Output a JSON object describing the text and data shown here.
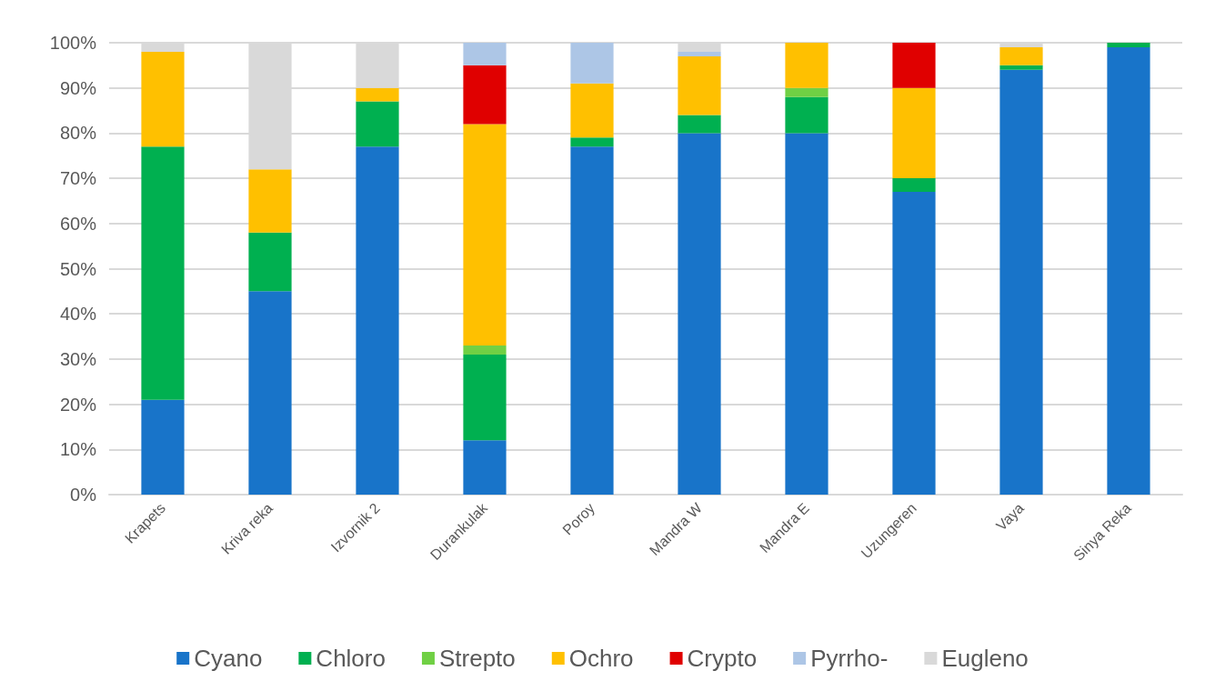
{
  "chart_data": {
    "type": "bar",
    "stacked": true,
    "categories": [
      "Krapets",
      "Kriva reka",
      "Izvornik 2",
      "Durankulak",
      "Poroy",
      "Mandra W",
      "Mandra E",
      "Uzungeren",
      "Vaya",
      "Sinya Reka"
    ],
    "series": [
      {
        "name": "Cyano",
        "color": "#1874c9",
        "values": [
          21,
          45,
          77,
          12,
          77,
          80,
          80,
          67,
          94,
          99
        ]
      },
      {
        "name": "Chloro",
        "color": "#00b050",
        "values": [
          56,
          13,
          10,
          19,
          2,
          4,
          8,
          3,
          1,
          1
        ]
      },
      {
        "name": "Strepto",
        "color": "#70d044",
        "values": [
          0,
          0,
          0,
          2,
          0,
          0,
          2,
          0,
          0,
          0
        ]
      },
      {
        "name": "Ochro",
        "color": "#ffc000",
        "values": [
          21,
          14,
          3,
          49,
          12,
          13,
          10,
          20,
          4,
          0
        ]
      },
      {
        "name": "Crypto",
        "color": "#e00000",
        "values": [
          0,
          0,
          0,
          13,
          0,
          0,
          0,
          10,
          0,
          0
        ]
      },
      {
        "name": "Pyrrho-",
        "color": "#adc6e6",
        "values": [
          0,
          0,
          0,
          5,
          9,
          1,
          0,
          0,
          0,
          0
        ]
      },
      {
        "name": "Eugleno",
        "color": "#d9d9d9",
        "values": [
          2,
          28,
          10,
          0,
          0,
          2,
          0,
          0,
          1,
          0
        ]
      }
    ],
    "ylim": [
      0,
      100
    ],
    "yticks": [
      {
        "value": 0,
        "label": "0%"
      },
      {
        "value": 10,
        "label": "10%"
      },
      {
        "value": 20,
        "label": "20%"
      },
      {
        "value": 30,
        "label": "30%"
      },
      {
        "value": 40,
        "label": "40%"
      },
      {
        "value": 50,
        "label": "50%"
      },
      {
        "value": 60,
        "label": "60%"
      },
      {
        "value": 70,
        "label": "70%"
      },
      {
        "value": 80,
        "label": "80%"
      },
      {
        "value": 90,
        "label": "90%"
      },
      {
        "value": 100,
        "label": "100%"
      }
    ],
    "grid": "y",
    "legend": "bottom"
  }
}
